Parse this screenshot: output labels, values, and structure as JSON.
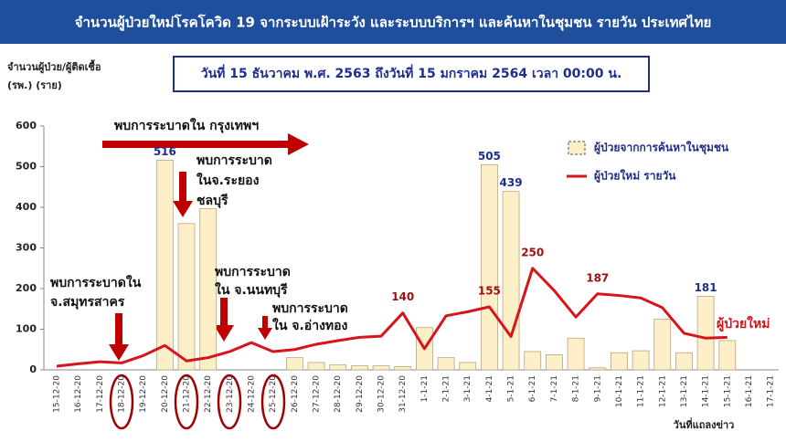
{
  "chart_data": {
    "type": "bar_line",
    "title": "จำนวนผู้ป่วยใหม่โรคโควิด 19 จากระบบเฝ้าระวัง และระบบบริการฯ และค้นหาในชุมชน รายวัน ประเทศไทย",
    "subtitle": "วันที่ 15 ธันวาคม พ.ศ. 2563 ถึงวันที่ 15 มกราคม 2564 เวลา 00:00 น.",
    "y_label": [
      "จำนวนผู้ป่วย/ผู้ติดเชื้อ",
      "(รพ.) (ราย)"
    ],
    "x_label": "วันที่แถลงข่าว",
    "categories": [
      "15-12-20",
      "16-12-20",
      "17-12-20",
      "18-12-20",
      "19-12-20",
      "20-12-20",
      "21-12-20",
      "22-12-20",
      "23-12-20",
      "24-12-20",
      "25-12-20",
      "26-12-20",
      "27-12-20",
      "28-12-20",
      "29-12-20",
      "30-12-20",
      "31-12-20",
      "1-1-21",
      "2-1-21",
      "3-1-21",
      "4-1-21",
      "5-1-21",
      "6-1-21",
      "7-1-21",
      "8-1-21",
      "9-1-21",
      "10-1-21",
      "11-1-21",
      "12-1-21",
      "13-1-21",
      "14-1-21",
      "15-1-21",
      "16-1-21",
      "17-1-21"
    ],
    "ylim": [
      0,
      600
    ],
    "yticks": [
      0,
      100,
      200,
      300,
      400,
      500,
      600
    ],
    "series": [
      {
        "name": "ผู้ป่วยจากการค้นหาในชุมชน",
        "kind": "bar",
        "color": "#fdf0c8",
        "values": [
          0,
          0,
          0,
          0,
          0,
          516,
          360,
          397,
          0,
          0,
          0,
          30,
          18,
          12,
          10,
          10,
          8,
          104,
          30,
          18,
          505,
          439,
          45,
          37,
          78,
          5,
          42,
          47,
          125,
          42,
          181,
          72,
          0,
          0
        ],
        "value_labels": [
          null,
          null,
          null,
          null,
          null,
          "516",
          null,
          null,
          null,
          null,
          null,
          null,
          null,
          null,
          null,
          null,
          null,
          null,
          null,
          null,
          "505",
          "439",
          null,
          null,
          null,
          null,
          null,
          null,
          null,
          null,
          "181",
          null,
          null,
          null
        ]
      },
      {
        "name": "ผู้ป่วยใหม่ รายวัน",
        "kind": "line",
        "color": "#d7141b",
        "values": [
          9,
          15,
          20,
          17,
          35,
          60,
          22,
          30,
          45,
          67,
          45,
          50,
          63,
          72,
          80,
          83,
          140,
          52,
          133,
          143,
          155,
          82,
          250,
          195,
          130,
          187,
          183,
          177,
          153,
          90,
          78,
          80,
          null,
          null
        ],
        "value_labels": [
          null,
          null,
          null,
          null,
          null,
          null,
          null,
          null,
          null,
          null,
          null,
          null,
          null,
          null,
          null,
          null,
          "140",
          null,
          null,
          null,
          "155",
          null,
          "250",
          null,
          null,
          "187",
          null,
          null,
          null,
          null,
          null,
          null,
          null,
          null
        ]
      }
    ],
    "line_end_label": "ผู้ป่วยใหม่",
    "annotations": [
      {
        "lines": [
          "พบการระบาดใน กรุงเทพฯ"
        ]
      },
      {
        "lines": [
          "พบการระบาด",
          "ในจ.ระยอง",
          "ชลบุรี"
        ]
      },
      {
        "lines": [
          "พบการระบาดใน",
          "จ.สมุทรสาคร"
        ]
      },
      {
        "lines": [
          "พบการระบาด",
          "ใน จ.นนทบุรี"
        ]
      },
      {
        "lines": [
          "พบการระบาด",
          "ใน จ.อ่างทอง"
        ]
      }
    ]
  }
}
